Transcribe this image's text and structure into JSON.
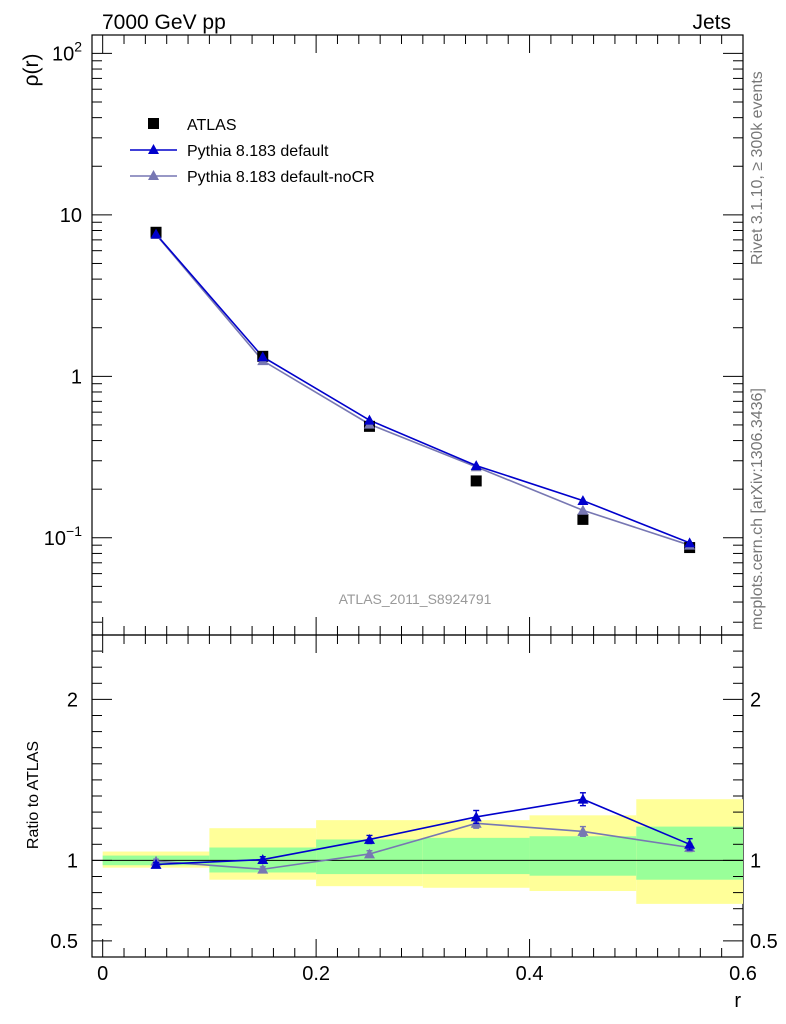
{
  "header": {
    "left_title": "7000 GeV pp",
    "right_title": "Jets"
  },
  "side_text": {
    "rivet": "Rivet 3.1.10, ≥ 300k events",
    "source": "mcplots.cern.ch [arXiv:1306.3436]"
  },
  "chart_data": [
    {
      "type": "scatter",
      "panel": "main",
      "ylabel": "ρ(r)",
      "yscale": "log",
      "ylim": [
        0.025,
        130
      ],
      "xlim": [
        -0.01,
        0.6
      ],
      "annotation": "ATLAS_2011_S8924791",
      "y_tick_labels": [
        "10",
        "1"
      ],
      "y_tick_values": [
        10,
        1
      ],
      "y_tick_exp_labels": [
        {
          "base": "10",
          "exp": "2",
          "value": 100
        },
        {
          "base": "10",
          "exp": "−1",
          "value": 0.1
        }
      ],
      "legend": [
        "ATLAS",
        "Pythia 8.183 default",
        "Pythia 8.183 default-noCR"
      ],
      "colors": {
        "atlas": "#000000",
        "default": "#0000cc",
        "nocr": "#7777b3"
      },
      "x": [
        0.05,
        0.15,
        0.25,
        0.35,
        0.45,
        0.55
      ],
      "series": [
        {
          "name": "ATLAS",
          "style": "data",
          "values": [
            7.8,
            1.33,
            0.49,
            0.225,
            0.13,
            0.087
          ]
        },
        {
          "name": "Pythia 8.183 default",
          "style": "line",
          "values": [
            7.6,
            1.32,
            0.535,
            0.28,
            0.17,
            0.093
          ]
        },
        {
          "name": "Pythia 8.183 default-noCR",
          "style": "line",
          "values": [
            7.55,
            1.25,
            0.505,
            0.275,
            0.148,
            0.09
          ]
        }
      ]
    },
    {
      "type": "scatter",
      "panel": "ratio",
      "ylabel": "Ratio to ATLAS",
      "xlabel": "r",
      "ylim": [
        0.4,
        2.4
      ],
      "xlim": [
        -0.01,
        0.6
      ],
      "x_tick_labels": [
        "0",
        "0.2",
        "0.4",
        "0.6"
      ],
      "x_tick_values": [
        0,
        0.2,
        0.4,
        0.6
      ],
      "y_tick_labels": [
        "2",
        "1",
        "0.5"
      ],
      "y_tick_values": [
        2,
        1,
        0.5
      ],
      "bands": [
        {
          "x0": 0.0,
          "x1": 0.1,
          "green": [
            0.97,
            1.03
          ],
          "yellow": [
            0.955,
            1.055
          ]
        },
        {
          "x0": 0.1,
          "x1": 0.2,
          "green": [
            0.925,
            1.08
          ],
          "yellow": [
            0.88,
            1.2
          ]
        },
        {
          "x0": 0.2,
          "x1": 0.3,
          "green": [
            0.915,
            1.13
          ],
          "yellow": [
            0.84,
            1.25
          ]
        },
        {
          "x0": 0.3,
          "x1": 0.4,
          "green": [
            0.915,
            1.14
          ],
          "yellow": [
            0.83,
            1.25
          ]
        },
        {
          "x0": 0.4,
          "x1": 0.5,
          "green": [
            0.905,
            1.15
          ],
          "yellow": [
            0.81,
            1.28
          ]
        },
        {
          "x0": 0.5,
          "x1": 0.6,
          "green": [
            0.88,
            1.21
          ],
          "yellow": [
            0.73,
            1.38
          ]
        }
      ],
      "x": [
        0.05,
        0.15,
        0.25,
        0.35,
        0.45,
        0.55
      ],
      "series": [
        {
          "name": "Pythia 8.183 default",
          "values": [
            0.975,
            1.005,
            1.13,
            1.27,
            1.38,
            1.1
          ],
          "errors": [
            0.012,
            0.018,
            0.025,
            0.04,
            0.04,
            0.035
          ]
        },
        {
          "name": "Pythia 8.183 default-noCR",
          "values": [
            0.995,
            0.945,
            1.04,
            1.23,
            1.18,
            1.08
          ],
          "errors": [
            0.012,
            0.015,
            0.02,
            0.03,
            0.03,
            0.025
          ]
        }
      ]
    }
  ]
}
